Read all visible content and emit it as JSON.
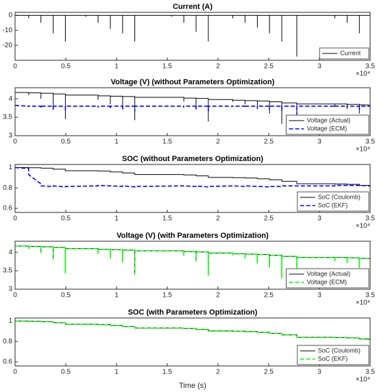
{
  "chart_data": [
    {
      "type": "spike",
      "title": "Current (A)",
      "x_offset_label": "×10⁴",
      "xlim": [
        0,
        35000
      ],
      "ylim": [
        -30,
        2
      ],
      "xticks": [
        0,
        {
          "value": 5000,
          "label": "0.5"
        },
        {
          "value": 10000,
          "label": "1"
        },
        {
          "value": 15000,
          "label": "1.5"
        },
        {
          "value": 20000,
          "label": "2"
        },
        {
          "value": 25000,
          "label": "2.5"
        },
        {
          "value": 30000,
          "label": "3"
        },
        {
          "value": 35000,
          "label": "3.5"
        }
      ],
      "yticks": [
        -20,
        -10,
        0
      ],
      "legend": "lower right",
      "x": [
        1340,
        2550,
        3760,
        4960,
        6975,
        8180,
        9390,
        10600,
        11800,
        15430,
        16630,
        17840,
        19050,
        21460,
        22670,
        23880,
        25080,
        26290,
        27770,
        31520,
        32730,
        33940
      ],
      "series": [
        {
          "name": "Current",
          "color": "#000000",
          "dashed": false,
          "values": [
            -2,
            -5,
            -12,
            -17.5,
            -1,
            -5,
            -9,
            -12,
            -17.5,
            -1,
            -5,
            -11,
            -17.5,
            -2,
            -5,
            -8,
            -12,
            -17.5,
            -27.5,
            -2,
            -5,
            -12
          ]
        }
      ]
    },
    {
      "type": "line",
      "title": "Voltage (V) (without Parameters Optimization)",
      "x_offset_label": "×10⁴",
      "xlim": [
        0,
        35000
      ],
      "ylim": [
        3,
        4.3
      ],
      "xticks": [
        0,
        {
          "value": 5000,
          "label": "0.5"
        },
        {
          "value": 10000,
          "label": "1"
        },
        {
          "value": 15000,
          "label": "1.5"
        },
        {
          "value": 20000,
          "label": "2"
        },
        {
          "value": 25000,
          "label": "2.5"
        },
        {
          "value": 30000,
          "label": "3"
        },
        {
          "value": 35000,
          "label": "3.5"
        }
      ],
      "yticks": [
        3,
        3.5,
        4
      ],
      "legend": "lower right",
      "x": [
        0,
        1340,
        1340,
        1340,
        2550,
        2550,
        2550,
        3760,
        3760,
        3760,
        4960,
        4960,
        4960,
        8180,
        8180,
        8180,
        9390,
        9390,
        9390,
        10600,
        10600,
        10600,
        11800,
        11800,
        11800,
        16630,
        16630,
        16630,
        17840,
        17840,
        17840,
        19050,
        19050,
        19050,
        21460,
        21460,
        21460,
        22670,
        22670,
        22670,
        23880,
        23880,
        23880,
        25080,
        25080,
        25080,
        26290,
        26290,
        26290,
        27770,
        27770,
        27770,
        31520,
        31520,
        31520,
        32730,
        32730,
        32730,
        33940,
        33940,
        33940,
        35000
      ],
      "series": [
        {
          "name": "Voltage (Actual)",
          "color": "#000000",
          "dashed": false,
          "values": [
            4.17,
            4.17,
            4.1,
            4.16,
            4.16,
            4.0,
            4.15,
            4.15,
            3.82,
            4.13,
            4.13,
            3.45,
            4.1,
            4.1,
            3.97,
            4.08,
            4.08,
            3.85,
            4.07,
            4.07,
            3.75,
            4.06,
            4.06,
            3.42,
            4.04,
            4.04,
            3.92,
            4.02,
            4.02,
            3.77,
            4.01,
            4.01,
            3.38,
            3.98,
            3.98,
            3.92,
            3.96,
            3.96,
            3.85,
            3.95,
            3.95,
            3.72,
            3.94,
            3.94,
            3.6,
            3.92,
            3.92,
            3.32,
            3.89,
            3.89,
            3.2,
            3.86,
            3.86,
            3.78,
            3.86,
            3.86,
            3.72,
            3.85,
            3.85,
            3.6,
            3.84,
            3.83
          ]
        },
        {
          "name": "Voltage (ECM)",
          "color": "#0000ff",
          "dashed": true,
          "values": [
            3.82,
            3.8,
            3.78,
            3.8,
            3.8,
            3.76,
            3.8,
            3.8,
            3.7,
            3.8,
            3.8,
            3.66,
            3.8,
            3.8,
            3.76,
            3.8,
            3.8,
            3.73,
            3.8,
            3.8,
            3.7,
            3.8,
            3.8,
            3.66,
            3.8,
            3.8,
            3.76,
            3.8,
            3.8,
            3.71,
            3.8,
            3.8,
            3.66,
            3.8,
            3.8,
            3.78,
            3.8,
            3.8,
            3.76,
            3.8,
            3.8,
            3.74,
            3.8,
            3.8,
            3.7,
            3.8,
            3.8,
            3.66,
            3.8,
            3.8,
            3.58,
            3.8,
            3.8,
            3.78,
            3.8,
            3.8,
            3.76,
            3.8,
            3.8,
            3.7,
            3.8,
            3.8
          ]
        }
      ]
    },
    {
      "type": "line",
      "title": "SOC (without Parameters Optimization)",
      "x_offset_label": "×10⁴",
      "xlim": [
        0,
        35000
      ],
      "ylim": [
        0.56,
        1.03
      ],
      "xticks": [
        0,
        {
          "value": 5000,
          "label": "0.5"
        },
        {
          "value": 10000,
          "label": "1"
        },
        {
          "value": 15000,
          "label": "1.5"
        },
        {
          "value": 20000,
          "label": "2"
        },
        {
          "value": 25000,
          "label": "2.5"
        },
        {
          "value": 30000,
          "label": "3"
        },
        {
          "value": 35000,
          "label": "3.5"
        }
      ],
      "yticks": [
        0.6,
        0.8,
        1
      ],
      "legend": "lower right",
      "x": [
        0,
        1340,
        1340,
        2550,
        2550,
        3760,
        3760,
        4960,
        4960,
        8180,
        8180,
        9390,
        9390,
        10600,
        10600,
        11800,
        11800,
        16630,
        16630,
        17840,
        17840,
        19050,
        19050,
        21460,
        21460,
        22670,
        22670,
        23880,
        23880,
        25080,
        25080,
        26290,
        26290,
        27770,
        27770,
        31520,
        31520,
        32730,
        32730,
        33940,
        33940,
        35000
      ],
      "series": [
        {
          "name": "SoC (Coulomb)",
          "color": "#000000",
          "dashed": false,
          "values": [
            1.0,
            1.0,
            0.998,
            0.998,
            0.994,
            0.994,
            0.984,
            0.984,
            0.969,
            0.969,
            0.965,
            0.965,
            0.957,
            0.957,
            0.947,
            0.947,
            0.932,
            0.932,
            0.928,
            0.928,
            0.918,
            0.918,
            0.903,
            0.903,
            0.901,
            0.901,
            0.897,
            0.897,
            0.89,
            0.89,
            0.88,
            0.88,
            0.865,
            0.865,
            0.841,
            0.841,
            0.839,
            0.839,
            0.835,
            0.835,
            0.825,
            0.825
          ]
        },
        {
          "name": "SoC (EKF)",
          "color": "#0000ff",
          "dashed": true,
          "values": [
            1.0,
            0.99,
            0.93,
            0.84,
            0.82,
            0.815,
            0.82,
            0.81,
            0.815,
            0.82,
            0.825,
            0.82,
            0.82,
            0.815,
            0.82,
            0.81,
            0.815,
            0.82,
            0.82,
            0.815,
            0.82,
            0.81,
            0.815,
            0.82,
            0.82,
            0.815,
            0.82,
            0.815,
            0.815,
            0.81,
            0.815,
            0.815,
            0.82,
            0.82,
            0.82,
            0.82,
            0.825,
            0.825,
            0.825,
            0.825,
            0.825,
            0.82
          ]
        }
      ]
    },
    {
      "type": "line",
      "title": "Voltage (V) (with Parameters Optimization)",
      "x_offset_label": "×10⁴",
      "xlim": [
        0,
        35000
      ],
      "ylim": [
        3,
        4.3
      ],
      "xticks": [
        0,
        {
          "value": 5000,
          "label": "0.5"
        },
        {
          "value": 10000,
          "label": "1"
        },
        {
          "value": 15000,
          "label": "1.5"
        },
        {
          "value": 20000,
          "label": "2"
        },
        {
          "value": 25000,
          "label": "2.5"
        },
        {
          "value": 30000,
          "label": "3"
        },
        {
          "value": 35000,
          "label": "3.5"
        }
      ],
      "yticks": [
        3,
        3.5,
        4
      ],
      "legend": "lower right",
      "x": [
        0,
        1340,
        1340,
        1340,
        2550,
        2550,
        2550,
        3760,
        3760,
        3760,
        4960,
        4960,
        4960,
        8180,
        8180,
        8180,
        9390,
        9390,
        9390,
        10600,
        10600,
        10600,
        11800,
        11800,
        11800,
        16630,
        16630,
        16630,
        17840,
        17840,
        17840,
        19050,
        19050,
        19050,
        21460,
        21460,
        21460,
        22670,
        22670,
        22670,
        23880,
        23880,
        23880,
        25080,
        25080,
        25080,
        26290,
        26290,
        26290,
        27770,
        27770,
        27770,
        31520,
        31520,
        31520,
        32730,
        32730,
        32730,
        33940,
        33940,
        33940,
        35000
      ],
      "series": [
        {
          "name": "Voltage (Actual)",
          "color": "#000000",
          "dashed": false,
          "values": [
            4.17,
            4.17,
            4.1,
            4.16,
            4.16,
            4.0,
            4.15,
            4.15,
            3.82,
            4.13,
            4.13,
            3.45,
            4.1,
            4.1,
            3.97,
            4.08,
            4.08,
            3.85,
            4.07,
            4.07,
            3.75,
            4.06,
            4.06,
            3.42,
            4.04,
            4.04,
            3.92,
            4.02,
            4.02,
            3.77,
            4.01,
            4.01,
            3.38,
            3.98,
            3.98,
            3.92,
            3.96,
            3.96,
            3.85,
            3.95,
            3.95,
            3.72,
            3.94,
            3.94,
            3.6,
            3.92,
            3.92,
            3.32,
            3.89,
            3.89,
            3.2,
            3.86,
            3.86,
            3.78,
            3.86,
            3.86,
            3.72,
            3.85,
            3.85,
            3.6,
            3.84,
            3.83
          ]
        },
        {
          "name": "Voltage (ECM)",
          "color": "#00ff00",
          "dashed": true,
          "values": [
            4.17,
            4.17,
            4.08,
            4.16,
            4.16,
            3.98,
            4.15,
            4.15,
            3.8,
            4.13,
            4.13,
            3.43,
            4.1,
            4.1,
            3.95,
            4.08,
            4.08,
            3.83,
            4.07,
            4.07,
            3.73,
            4.06,
            4.06,
            3.4,
            4.04,
            4.04,
            3.9,
            4.02,
            4.02,
            3.75,
            4.01,
            4.01,
            3.36,
            3.98,
            3.98,
            3.9,
            3.96,
            3.96,
            3.83,
            3.95,
            3.95,
            3.7,
            3.94,
            3.94,
            3.58,
            3.92,
            3.92,
            3.3,
            3.89,
            3.89,
            3.18,
            3.86,
            3.86,
            3.76,
            3.86,
            3.86,
            3.7,
            3.85,
            3.85,
            3.58,
            3.84,
            3.83
          ]
        }
      ]
    },
    {
      "type": "line",
      "title": "SOC (with Parameters Optimization)",
      "x_offset_label": "×10⁴",
      "x_label": "Time (s)",
      "xlim": [
        0,
        35000
      ],
      "ylim": [
        0.56,
        1.03
      ],
      "xticks": [
        0,
        {
          "value": 5000,
          "label": "0.5"
        },
        {
          "value": 10000,
          "label": "1"
        },
        {
          "value": 15000,
          "label": "1.5"
        },
        {
          "value": 20000,
          "label": "2"
        },
        {
          "value": 25000,
          "label": "2.5"
        },
        {
          "value": 30000,
          "label": "3"
        },
        {
          "value": 35000,
          "label": "3.5"
        }
      ],
      "yticks": [
        0.6,
        0.8,
        1
      ],
      "legend": "lower right",
      "x": [
        0,
        1340,
        1340,
        2550,
        2550,
        3760,
        3760,
        4960,
        4960,
        8180,
        8180,
        9390,
        9390,
        10600,
        10600,
        11800,
        11800,
        16630,
        16630,
        17840,
        17840,
        19050,
        19050,
        21460,
        21460,
        22670,
        22670,
        23880,
        23880,
        25080,
        25080,
        26290,
        26290,
        27770,
        27770,
        31520,
        31520,
        32730,
        32730,
        33940,
        33940,
        35000
      ],
      "series": [
        {
          "name": "SoC (Coulomb)",
          "color": "#000000",
          "dashed": false,
          "values": [
            1.0,
            1.0,
            0.998,
            0.998,
            0.994,
            0.994,
            0.984,
            0.984,
            0.969,
            0.969,
            0.965,
            0.965,
            0.957,
            0.957,
            0.947,
            0.947,
            0.932,
            0.932,
            0.928,
            0.928,
            0.918,
            0.918,
            0.903,
            0.903,
            0.901,
            0.901,
            0.897,
            0.897,
            0.89,
            0.89,
            0.88,
            0.88,
            0.865,
            0.865,
            0.841,
            0.841,
            0.839,
            0.839,
            0.835,
            0.835,
            0.825,
            0.825
          ]
        },
        {
          "name": "SoC (EKF)",
          "color": "#00ff00",
          "dashed": true,
          "values": [
            1.0,
            1.0,
            0.997,
            0.997,
            0.993,
            0.993,
            0.983,
            0.983,
            0.968,
            0.968,
            0.964,
            0.964,
            0.956,
            0.956,
            0.946,
            0.946,
            0.931,
            0.931,
            0.927,
            0.927,
            0.917,
            0.917,
            0.902,
            0.902,
            0.9,
            0.9,
            0.896,
            0.896,
            0.889,
            0.889,
            0.879,
            0.879,
            0.864,
            0.864,
            0.84,
            0.84,
            0.838,
            0.838,
            0.834,
            0.834,
            0.824,
            0.82
          ]
        }
      ]
    }
  ]
}
